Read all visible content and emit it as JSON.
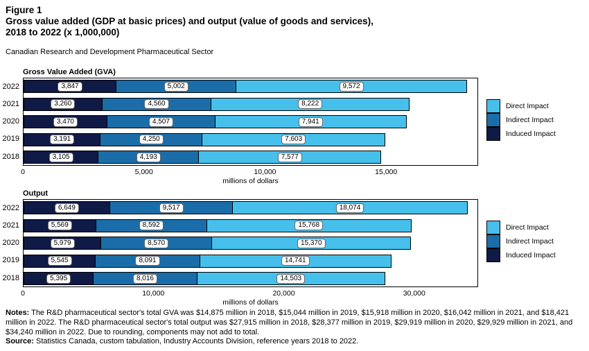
{
  "header": {
    "figure_label": "Figure 1",
    "title_line1": "Gross value added (GDP at basic prices) and output (value of goods and services),",
    "title_line2": "2018 to 2022 (x 1,000,000)",
    "subtitle": "Canadian Research and Development Pharmaceutical Sector"
  },
  "colors": {
    "direct_impact": "#47BFEB",
    "indirect_impact": "#1A6DA8",
    "induced_impact": "#101A47",
    "bar_outline": "#000000"
  },
  "chart_data": [
    {
      "type": "bar",
      "orientation": "horizontal",
      "stacked": true,
      "title": "Gross Value Added (GVA)",
      "categories": [
        "2022",
        "2021",
        "2020",
        "2019",
        "2018"
      ],
      "series": [
        {
          "name": "Induced Impact",
          "color": "#101A47",
          "values": [
            3847,
            3260,
            3470,
            3191,
            3105
          ]
        },
        {
          "name": "Indirect Impact",
          "color": "#1A6DA8",
          "values": [
            5002,
            4560,
            4507,
            4250,
            4193
          ]
        },
        {
          "name": "Direct Impact",
          "color": "#47BFEB",
          "values": [
            9572,
            8222,
            7941,
            7603,
            7577
          ]
        }
      ],
      "totals": [
        18421,
        16042,
        15918,
        15044,
        14875
      ],
      "xlabel": "millions of dollars",
      "xlim": [
        0,
        18800
      ],
      "xticks": [
        0,
        5000,
        10000,
        15000
      ],
      "grid": false,
      "legend_position": "right",
      "legend": [
        {
          "label": "Direct Impact",
          "color": "#47BFEB"
        },
        {
          "label": "Indirect Impact",
          "color": "#1A6DA8"
        },
        {
          "label": "Induced Impact",
          "color": "#101A47"
        }
      ]
    },
    {
      "type": "bar",
      "orientation": "horizontal",
      "stacked": true,
      "title": "Output",
      "categories": [
        "2022",
        "2021",
        "2020",
        "2019",
        "2018"
      ],
      "series": [
        {
          "name": "Induced Impact",
          "color": "#101A47",
          "values": [
            6649,
            5569,
            5979,
            5545,
            5395
          ]
        },
        {
          "name": "Indirect Impact",
          "color": "#1A6DA8",
          "values": [
            9517,
            8592,
            8570,
            8091,
            8016
          ]
        },
        {
          "name": "Direct Impact",
          "color": "#47BFEB",
          "values": [
            18074,
            15768,
            15370,
            14741,
            14503
          ]
        }
      ],
      "totals": [
        34240,
        29929,
        29919,
        28377,
        27915
      ],
      "xlabel": "millions of dollars",
      "xlim": [
        0,
        34900
      ],
      "xticks": [
        0,
        10000,
        20000,
        30000
      ],
      "grid": false,
      "legend_position": "right",
      "legend": [
        {
          "label": "Direct Impact",
          "color": "#47BFEB"
        },
        {
          "label": "Indirect Impact",
          "color": "#1A6DA8"
        },
        {
          "label": "Induced Impact",
          "color": "#101A47"
        }
      ]
    }
  ],
  "notes": {
    "notes_label": "Notes:",
    "notes_text": "The R&D pharmaceutical sector's total GVA was $14,875 million in 2018, $15,044 million in 2019, $15,918 million in 2020, $16,042 million in 2021, and $18,421 million in 2022. The R&D pharmaceutical sector's total output was $27,915 million in 2018, $28,377 million in 2019, $29,919 million in 2020, $29,929 million in 2021, and $34,240 million in 2022. Due to rounding, components may not add to total.",
    "source_label": "Source:",
    "source_text": "Statistics Canada, custom tabulation, Industry Accounts Division, reference years 2018 to 2022."
  }
}
